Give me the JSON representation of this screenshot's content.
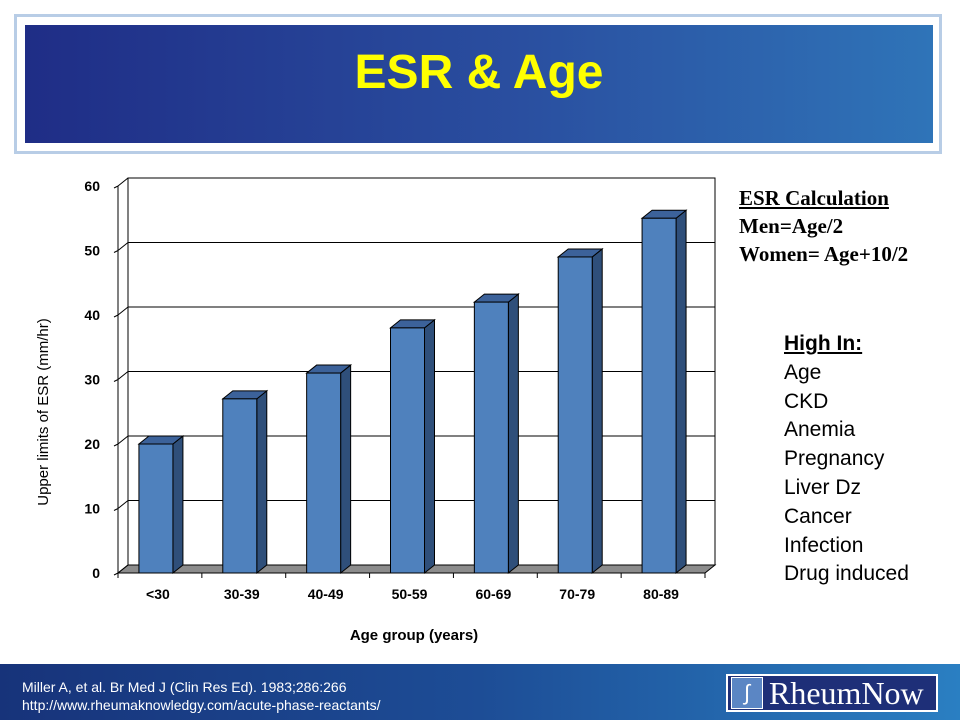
{
  "title": "ESR & Age",
  "calc": {
    "heading": "ESR Calculation",
    "men": "Men=Age/2",
    "women": "Women= Age+10/2"
  },
  "high_in": {
    "heading": "High In:",
    "items": [
      "Age",
      "CKD",
      "Anemia",
      "Pregnancy",
      "Liver Dz",
      "Cancer",
      "Infection",
      "Drug induced"
    ]
  },
  "footer": {
    "citation": "Miller A, et al. Br Med J (Clin Res Ed). 1983;286:266",
    "url": "http://www.rheumaknowledgy.com/acute-phase-reactants/",
    "logo": "RheumNow"
  },
  "colors": {
    "bar_front": "#4f81bd",
    "bar_side": "#2f4f7a",
    "title": "#ffff00"
  },
  "chart_data": {
    "type": "bar",
    "categories": [
      "<30",
      "30-39",
      "40-49",
      "50-59",
      "60-69",
      "70-79",
      "80-89"
    ],
    "values": [
      20,
      27,
      31,
      38,
      42,
      49,
      55
    ],
    "xlabel": "Age group (years)",
    "ylabel": "Upper limits of ESR (mm/hr)",
    "ylim": [
      0,
      60
    ],
    "yticks": [
      0,
      10,
      20,
      30,
      40,
      50,
      60
    ],
    "grid": true
  }
}
